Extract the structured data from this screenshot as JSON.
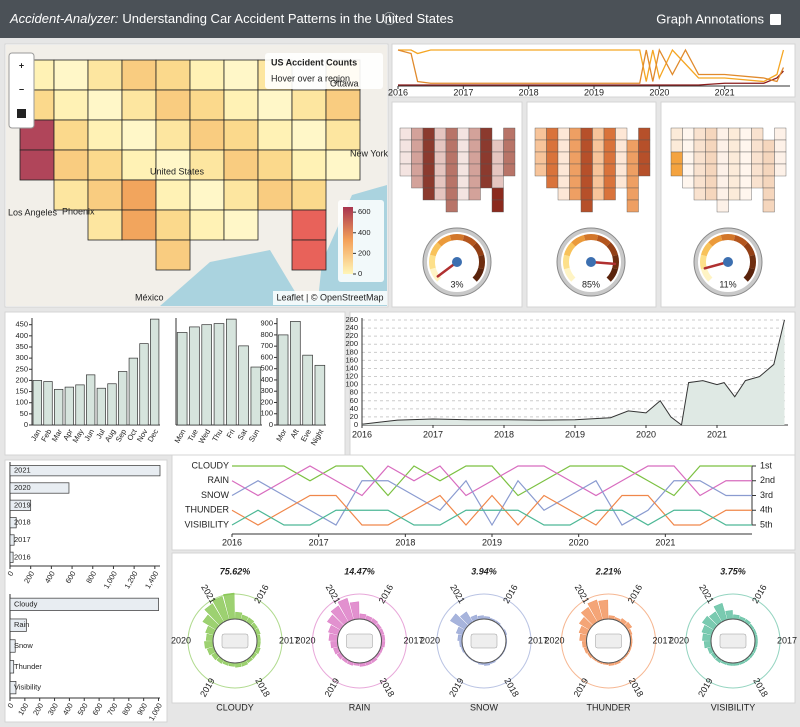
{
  "header": {
    "title_em": "Accident-Analyzer:",
    "title": "Understanding Car Accident Patterns in the United States",
    "info": "ⓘ",
    "annotations": "Graph Annotations"
  },
  "map": {
    "title": "US Accident Counts",
    "hint": "Hover over a region",
    "zoom_in": "+",
    "zoom_out": "−",
    "attribution": "Leaflet | © OpenStreetMap",
    "places": [
      "Ottawa",
      "New York",
      "United States",
      "Phoenix",
      "Los Angeles",
      "México"
    ],
    "legend_lim": [
      0,
      650
    ],
    "legend_ticks": [
      600,
      400,
      200,
      0
    ]
  },
  "chart_data": [
    {
      "type": "line",
      "x": [
        2016,
        2016.2,
        2016.3,
        2016.5,
        2019.7,
        2019.8,
        2019.9,
        2020.0,
        2020.2,
        2020.4,
        2020.6,
        2021.0,
        2021.6,
        2021.8,
        2021.9
      ],
      "xlim": [
        2016,
        2022
      ],
      "xticks": [
        2016,
        2017,
        2018,
        2019,
        2020,
        2021
      ],
      "ylim": [
        0,
        1
      ],
      "series": [
        {
          "color": "#f5a623",
          "values": [
            1,
            1,
            0.9,
            1,
            1,
            0.1,
            1,
            0.2,
            1,
            0.6,
            0.2,
            0.2,
            0.1,
            0.3,
            1
          ]
        },
        {
          "color": "#8b1c1c",
          "values": [
            0,
            0,
            0,
            0,
            0,
            0,
            0,
            0,
            0,
            0,
            0,
            0.05,
            0.05,
            0.2,
            0.4
          ]
        },
        {
          "color": "#e08a2c",
          "values": [
            1,
            0.9,
            0.1,
            0.05,
            0.05,
            1,
            0.1,
            1,
            0.3,
            1,
            0.3,
            0.3,
            0.2,
            0.1,
            0.5
          ]
        }
      ]
    },
    {
      "type": "gauge",
      "values": [
        3,
        85,
        11
      ],
      "value_labels": [
        "3%",
        "85%",
        "11%"
      ],
      "ylim": [
        0,
        100
      ]
    },
    {
      "type": "bar",
      "categories": [
        "Jan",
        "Feb",
        "Mar",
        "Apr",
        "May",
        "Jun",
        "Jul",
        "Aug",
        "Sep",
        "Oct",
        "Nov",
        "Dec"
      ],
      "values": [
        200,
        195,
        160,
        170,
        180,
        225,
        165,
        185,
        240,
        300,
        365,
        475
      ],
      "color": "#d6e4dd",
      "ylim": [
        0,
        480
      ],
      "yticks": [
        0,
        50,
        100,
        150,
        200,
        250,
        300,
        350,
        400,
        450
      ]
    },
    {
      "type": "bar",
      "categories": [
        "Mon",
        "Tue",
        "Wed",
        "Thu",
        "Fri",
        "Sat",
        "Sun"
      ],
      "values": [
        415,
        440,
        450,
        455,
        475,
        355,
        260
      ],
      "color": "#d6e4dd",
      "ylim": [
        0,
        480
      ]
    },
    {
      "type": "bar",
      "categories": [
        "Mor",
        "Aft",
        "Eve",
        "Night"
      ],
      "values": [
        800,
        920,
        620,
        530
      ],
      "color": "#d6e4dd",
      "ylim": [
        0,
        950
      ],
      "yticks": [
        0,
        100,
        200,
        300,
        400,
        500,
        600,
        700,
        800,
        900
      ]
    },
    {
      "type": "area",
      "x": [
        2016,
        2016.5,
        2017,
        2017.5,
        2018,
        2018.5,
        2019,
        2019.5,
        2019.75,
        2020,
        2020.2,
        2020.35,
        2020.5,
        2020.6,
        2020.8,
        2021,
        2021.1,
        2021.25,
        2021.4,
        2021.6,
        2021.8,
        2021.95
      ],
      "values": [
        2,
        12,
        15,
        13,
        13,
        12,
        13,
        18,
        35,
        30,
        60,
        20,
        0,
        105,
        110,
        100,
        105,
        70,
        110,
        120,
        150,
        260
      ],
      "color": "#dfe9e4",
      "xlim": [
        2016,
        2022
      ],
      "xticks": [
        2016,
        2017,
        2018,
        2019,
        2020,
        2021
      ],
      "ylim": [
        0,
        265
      ],
      "yticks": [
        0,
        20,
        40,
        60,
        80,
        100,
        120,
        140,
        160,
        180,
        200,
        220,
        240,
        260
      ],
      "grid": true
    },
    {
      "type": "hbar",
      "categories": [
        "2021",
        "2020",
        "2019",
        "2018",
        "2017",
        "2016"
      ],
      "values": [
        1450,
        570,
        200,
        60,
        40,
        30
      ],
      "color": "#e8edf2",
      "xlim": [
        0,
        1450
      ],
      "xticks": [
        0,
        200,
        400,
        600,
        800,
        {
          "value": 1000,
          "label": "1,000"
        },
        {
          "value": 1200,
          "label": "1,200"
        },
        {
          "value": 1400,
          "label": "1,400"
        }
      ]
    },
    {
      "type": "hbar",
      "categories": [
        "Cloudy",
        "Rain",
        "Snow",
        "Thunder",
        "Visibility"
      ],
      "values": [
        1000,
        110,
        35,
        25,
        40
      ],
      "color": "#e8edf2",
      "xlim": [
        0,
        1010
      ],
      "xticks": [
        0,
        100,
        200,
        300,
        400,
        500,
        600,
        700,
        800,
        900,
        {
          "value": 1000,
          "label": "1,000"
        }
      ]
    },
    {
      "type": "bump",
      "x": [
        2016,
        2016.3,
        2016.6,
        2016.9,
        2017.2,
        2017.5,
        2017.8,
        2018.1,
        2018.4,
        2018.7,
        2019.0,
        2019.3,
        2019.6,
        2019.9,
        2020.2,
        2020.5,
        2020.8,
        2021.1,
        2021.4,
        2021.7
      ],
      "xlim": [
        2016,
        2022
      ],
      "xticks": [
        2016,
        2017,
        2018,
        2019,
        2020,
        2021
      ],
      "ylim": [
        1,
        5
      ],
      "yticks": [
        {
          "value": 1,
          "label": "1st"
        },
        {
          "value": 2,
          "label": "2nd"
        },
        {
          "value": 3,
          "label": "3rd"
        },
        {
          "value": 4,
          "label": "4th"
        },
        {
          "value": 5,
          "label": "5th"
        }
      ],
      "series": [
        {
          "name": "CLOUDY",
          "color": "#7cc142",
          "values": [
            1,
            1,
            1,
            2,
            1,
            1,
            3,
            1,
            2,
            1,
            1,
            3,
            2,
            1,
            1,
            1,
            2,
            3,
            1,
            1
          ]
        },
        {
          "name": "RAIN",
          "color": "#d86cbf",
          "values": [
            2,
            3,
            2,
            1,
            2,
            3,
            1,
            2,
            1,
            3,
            2,
            1,
            1,
            2,
            3,
            2,
            1,
            1,
            3,
            2
          ]
        },
        {
          "name": "SNOW",
          "color": "#8a9bd0",
          "values": [
            3,
            2,
            3,
            4,
            5,
            2,
            2,
            3,
            4,
            2,
            5,
            2,
            4,
            3,
            2,
            5,
            4,
            2,
            2,
            3
          ]
        },
        {
          "name": "THUNDER",
          "color": "#f0874a",
          "values": [
            4,
            5,
            4,
            3,
            3,
            5,
            5,
            4,
            3,
            5,
            3,
            5,
            3,
            4,
            5,
            3,
            3,
            5,
            5,
            4
          ]
        },
        {
          "name": "VISIBILITY",
          "color": "#4db896",
          "values": [
            5,
            4,
            5,
            5,
            4,
            4,
            4,
            5,
            5,
            4,
            4,
            4,
            5,
            5,
            4,
            4,
            5,
            4,
            4,
            5
          ]
        }
      ]
    },
    {
      "type": "radial",
      "years": [
        "2016",
        "2017",
        "2018",
        "2019",
        "2020",
        "2021"
      ],
      "rlim": [
        0,
        30
      ],
      "shares": [
        75.62,
        14.47,
        3.94,
        2.21,
        3.75
      ],
      "share_labels": [
        "75.62%",
        "14.47%",
        "3.94%",
        "2.21%",
        "3.75%"
      ],
      "series": [
        {
          "name": "CLOUDY",
          "color": "#7cc142",
          "values": [
            8,
            6,
            6,
            5,
            5,
            4,
            4,
            5,
            4,
            4,
            5,
            5,
            4,
            4,
            5,
            6,
            8,
            10,
            8,
            10,
            18,
            25,
            28,
            30
          ]
        },
        {
          "name": "RAIN",
          "color": "#d86cbf",
          "values": [
            6,
            5,
            5,
            4,
            4,
            4,
            4,
            3,
            3,
            4,
            4,
            4,
            3,
            4,
            4,
            5,
            6,
            8,
            10,
            12,
            18,
            22,
            26,
            20
          ]
        },
        {
          "name": "SNOW",
          "color": "#8a9bd0",
          "values": [
            3,
            2,
            2,
            1,
            2,
            1,
            1,
            1,
            1,
            1,
            2,
            3,
            2,
            1,
            1,
            1,
            2,
            3,
            5,
            8,
            20,
            14,
            6,
            4
          ]
        },
        {
          "name": "THUNDER",
          "color": "#f0874a",
          "values": [
            4,
            3,
            5,
            6,
            3,
            2,
            2,
            2,
            2,
            2,
            3,
            3,
            2,
            2,
            2,
            3,
            4,
            5,
            8,
            10,
            14,
            20,
            24,
            22
          ]
        },
        {
          "name": "VISIBILITY",
          "color": "#4db896",
          "values": [
            5,
            4,
            4,
            3,
            3,
            3,
            3,
            3,
            3,
            3,
            3,
            3,
            3,
            3,
            4,
            4,
            5,
            8,
            10,
            12,
            16,
            14,
            20,
            10
          ]
        }
      ]
    }
  ]
}
